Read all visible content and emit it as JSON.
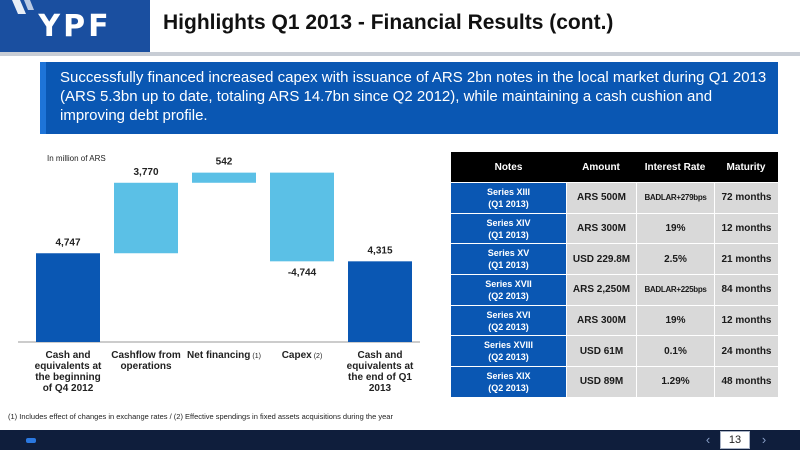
{
  "header": {
    "logo_text": "YPF",
    "title": "Highlights Q1 2013 - Financial Results (cont.)"
  },
  "summary": {
    "text": "Successfully financed increased capex with issuance of ARS 2bn notes in the local market during Q1 2013 (ARS 5.3bn up to date, totaling ARS 14.7bn since Q2 2012), while maintaining a cash cushion and improving debt profile."
  },
  "chart_data": {
    "type": "bar",
    "subtype": "waterfall",
    "unit_label": "In million of ARS",
    "categories": [
      {
        "lines": [
          "Cash and",
          "equivalents at",
          "the beginning",
          "of Q4 2012"
        ]
      },
      {
        "lines": [
          "Cashflow from",
          "operations"
        ]
      },
      {
        "lines": [
          "Net financing"
        ],
        "sup": "(1)"
      },
      {
        "lines": [
          "Capex"
        ],
        "sup": "(2)"
      },
      {
        "lines": [
          "Cash and",
          "equivalents at",
          "the end of Q1",
          "2013"
        ]
      }
    ],
    "values": [
      4747,
      3770,
      542,
      -4744,
      4315
    ],
    "value_labels": [
      "4,747",
      "3,770",
      "542",
      "-4,744",
      "4,315"
    ],
    "kinds": [
      "total",
      "delta",
      "delta",
      "delta",
      "total"
    ],
    "colors": {
      "total": "#0a57b3",
      "delta": "#5bc0e6"
    },
    "ylim": [
      0,
      9200
    ]
  },
  "table": {
    "headers": [
      "Notes",
      "Amount",
      "Interest Rate",
      "Maturity"
    ],
    "rows": [
      {
        "note": [
          "Series XIII",
          "(Q1 2013)"
        ],
        "amount": "ARS 500M",
        "rate": "BADLAR+279bps",
        "maturity": "72 months"
      },
      {
        "note": [
          "Series XIV",
          "(Q1 2013)"
        ],
        "amount": "ARS 300M",
        "rate": "19%",
        "maturity": "12 months"
      },
      {
        "note": [
          "Series XV",
          "(Q1 2013)"
        ],
        "amount": "USD 229.8M",
        "rate": "2.5%",
        "maturity": "21 months"
      },
      {
        "note": [
          "Series XVII",
          "(Q2 2013)"
        ],
        "amount": "ARS 2,250M",
        "rate": "BADLAR+225bps",
        "maturity": "84 months"
      },
      {
        "note": [
          "Series XVI",
          "(Q2 2013)"
        ],
        "amount": "ARS 300M",
        "rate": "19%",
        "maturity": "12 months"
      },
      {
        "note": [
          "Series XVIII",
          "(Q2 2013)"
        ],
        "amount": "USD 61M",
        "rate": "0.1%",
        "maturity": "24 months"
      },
      {
        "note": [
          "Series XIX",
          "(Q2 2013)"
        ],
        "amount": "USD 89M",
        "rate": "1.29%",
        "maturity": "48 months"
      }
    ]
  },
  "footnote": "(1) Includes effect of changes in exchange rates   / (2) Effective spendings in fixed assets acquisitions during the year",
  "footer": {
    "prev_icon": "chevron-left-icon",
    "next_icon": "chevron-right-icon",
    "page_number": "13"
  }
}
